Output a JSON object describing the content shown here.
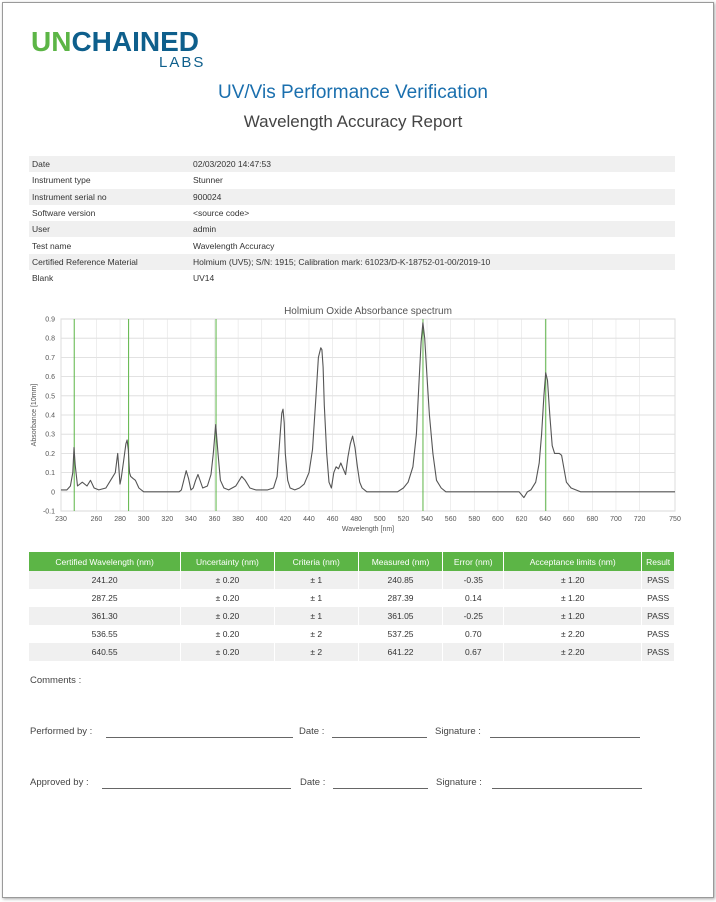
{
  "logo": {
    "un": "UN",
    "chained": "CHAINED",
    "labs": "LABS"
  },
  "title": "UV/Vis Performance Verification",
  "subtitle": "Wavelength Accuracy Report",
  "info": [
    {
      "key": "Date",
      "value": "02/03/2020 14:47:53"
    },
    {
      "key": "Instrument type",
      "value": "Stunner"
    },
    {
      "key": "Instrument serial no",
      "value": "900024"
    },
    {
      "key": "Software version",
      "value": "<source code>"
    },
    {
      "key": "User",
      "value": "admin"
    },
    {
      "key": "Test name",
      "value": "Wavelength Accuracy"
    },
    {
      "key": "Certified Reference Material",
      "value": "Holmium (UV5); S/N: 1915; Calibration mark: 61023/D-K-18752-01-00/2019-10"
    },
    {
      "key": "Blank",
      "value": "UV14"
    }
  ],
  "chart_data": {
    "type": "line",
    "title": "Holmium Oxide Absorbance spectrum",
    "xlabel": "Wavelength [nm]",
    "ylabel": "Absorbance [10mm]",
    "xlim": [
      230,
      750
    ],
    "ylim": [
      -0.1,
      0.9
    ],
    "x_ticks": [
      230,
      260,
      280,
      300,
      320,
      340,
      360,
      380,
      400,
      420,
      440,
      460,
      480,
      500,
      520,
      540,
      560,
      580,
      600,
      620,
      640,
      660,
      680,
      700,
      720,
      750
    ],
    "y_ticks": [
      -0.1,
      0,
      0.1,
      0.2,
      0.3,
      0.4,
      0.5,
      0.6,
      0.7,
      0.8,
      0.9
    ],
    "y_tick_labels": [
      "-0.1",
      "0",
      "0.1",
      "0.2",
      "0.3",
      "0.4",
      "0.5",
      "0.6",
      "0.7",
      "0.8",
      "0.9"
    ],
    "grid": true,
    "certified_lines": [
      241.2,
      287.25,
      361.3,
      536.55,
      640.55
    ],
    "line_color": "#5cb546",
    "series_color": "#555555",
    "series": [
      {
        "x": [
          230,
          235,
          238,
          240,
          241,
          242,
          244,
          248,
          252,
          255,
          258,
          262,
          268,
          272,
          276,
          278,
          279,
          280,
          281,
          283,
          285,
          286,
          287,
          288,
          289,
          291,
          293,
          296,
          300,
          305,
          310,
          320,
          330,
          332,
          334,
          336,
          338,
          340,
          342,
          344,
          346,
          350,
          354,
          357,
          359,
          361,
          363,
          365,
          368,
          372,
          378,
          383,
          386,
          390,
          395,
          400,
          405,
          410,
          413,
          416,
          417,
          418,
          419,
          420,
          422,
          424,
          428,
          432,
          436,
          440,
          443,
          446,
          448,
          450,
          451,
          452,
          453,
          455,
          457,
          459,
          461,
          463,
          465,
          467,
          469,
          471,
          473,
          475,
          477,
          479,
          481,
          483,
          485,
          487,
          489,
          492,
          496,
          500,
          505,
          510,
          515,
          520,
          524,
          528,
          531,
          533,
          535,
          536.5,
          538,
          540,
          542,
          545,
          548,
          552,
          556,
          560,
          570,
          580,
          590,
          600,
          610,
          618,
          622,
          625,
          628,
          632,
          635,
          637,
          639,
          640.5,
          642,
          644,
          646,
          648,
          650,
          652,
          654,
          656,
          658,
          662,
          666,
          670,
          680,
          700,
          720,
          750
        ],
        "y": [
          0.01,
          0.01,
          0.03,
          0.1,
          0.23,
          0.14,
          0.03,
          0.05,
          0.03,
          0.06,
          0.02,
          0.01,
          0.02,
          0.06,
          0.1,
          0.2,
          0.12,
          0.04,
          0.07,
          0.16,
          0.25,
          0.27,
          0.22,
          0.1,
          0.08,
          0.07,
          0.06,
          0.02,
          0.0,
          0.0,
          0.0,
          0.0,
          0.0,
          0.01,
          0.06,
          0.11,
          0.07,
          0.01,
          0.02,
          0.06,
          0.09,
          0.02,
          0.03,
          0.09,
          0.2,
          0.35,
          0.2,
          0.06,
          0.02,
          0.01,
          0.03,
          0.08,
          0.06,
          0.02,
          0.01,
          0.01,
          0.01,
          0.02,
          0.08,
          0.33,
          0.41,
          0.43,
          0.36,
          0.2,
          0.06,
          0.02,
          0.01,
          0.02,
          0.04,
          0.1,
          0.22,
          0.5,
          0.7,
          0.75,
          0.74,
          0.65,
          0.45,
          0.2,
          0.05,
          0.02,
          0.1,
          0.13,
          0.12,
          0.15,
          0.12,
          0.09,
          0.18,
          0.25,
          0.29,
          0.23,
          0.13,
          0.05,
          0.02,
          0.01,
          0.0,
          0.0,
          0.0,
          0.0,
          0.0,
          0.0,
          0.0,
          0.02,
          0.05,
          0.13,
          0.3,
          0.55,
          0.78,
          0.88,
          0.8,
          0.6,
          0.4,
          0.2,
          0.06,
          0.02,
          0.0,
          0.0,
          0.0,
          0.0,
          0.0,
          0.0,
          0.0,
          0.0,
          -0.03,
          0.0,
          0.01,
          0.05,
          0.15,
          0.3,
          0.5,
          0.62,
          0.58,
          0.4,
          0.24,
          0.2,
          0.2,
          0.2,
          0.19,
          0.12,
          0.05,
          0.02,
          0.01,
          0.0,
          0.0,
          0.0,
          0.0,
          0.0
        ]
      }
    ]
  },
  "results": {
    "headers": [
      "Certified Wavelength (nm)",
      "Uncertainty (nm)",
      "Criteria (nm)",
      "Measured (nm)",
      "Error (nm)",
      "Acceptance limits (nm)",
      "Result"
    ],
    "rows": [
      [
        "241.20",
        "± 0.20",
        "± 1",
        "240.85",
        "-0.35",
        "± 1.20",
        "PASS"
      ],
      [
        "287.25",
        "± 0.20",
        "± 1",
        "287.39",
        "0.14",
        "± 1.20",
        "PASS"
      ],
      [
        "361.30",
        "± 0.20",
        "± 1",
        "361.05",
        "-0.25",
        "± 1.20",
        "PASS"
      ],
      [
        "536.55",
        "± 0.20",
        "± 2",
        "537.25",
        "0.70",
        "± 2.20",
        "PASS"
      ],
      [
        "640.55",
        "± 0.20",
        "± 2",
        "641.22",
        "0.67",
        "± 2.20",
        "PASS"
      ]
    ]
  },
  "footer": {
    "comments": "Comments :",
    "performed_by": "Performed by :",
    "approved_by": "Approved by :",
    "date": "Date :",
    "signature": "Signature :"
  }
}
